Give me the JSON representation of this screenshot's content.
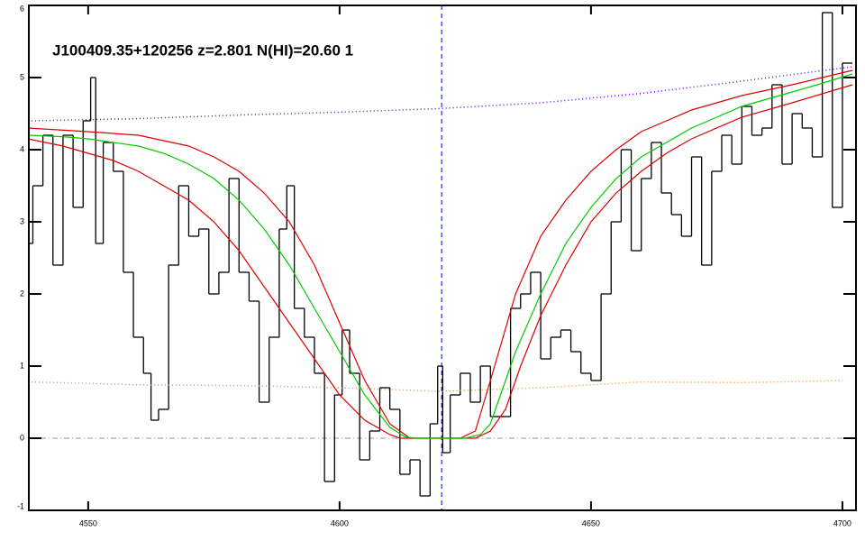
{
  "chart_data": {
    "type": "line",
    "title": "J100409.35+120256 z=2.801 N(HI)=20.60 1",
    "xlim": [
      4538.2,
      4702.7
    ],
    "ylim": [
      -1,
      6
    ],
    "xticks": [
      4550,
      4600,
      4650,
      4700
    ],
    "yticks": [
      -1,
      0,
      1,
      2,
      3,
      4,
      5,
      6
    ],
    "vline": 4620.3,
    "vline_color": "#0000cc",
    "hline": 0,
    "hline_color": "#999999",
    "series": [
      {
        "color": "#000000",
        "drawstyle": "steps-mid",
        "x": [
          4538,
          4540,
          4542,
          4544,
          4546,
          4548,
          4550,
          4551,
          4552,
          4554,
          4556,
          4558,
          4560,
          4562,
          4563,
          4565,
          4567,
          4569,
          4571,
          4573,
          4575,
          4577,
          4579,
          4581,
          4583,
          4585,
          4587,
          4589,
          4590,
          4592,
          4594,
          4596,
          4598,
          4600,
          4601,
          4603,
          4605,
          4607,
          4609,
          4611,
          4613,
          4615,
          4617,
          4619,
          4620,
          4621,
          4623,
          4625,
          4627,
          4629,
          4631,
          4633,
          4635,
          4637,
          4639,
          4641,
          4643,
          4645,
          4647,
          4649,
          4651,
          4653,
          4655,
          4657,
          4659,
          4661,
          4663,
          4665,
          4667,
          4669,
          4671,
          4673,
          4675,
          4677,
          4679,
          4681,
          4683,
          4685,
          4687,
          4689,
          4691,
          4693,
          4695,
          4697,
          4699,
          4701
        ],
        "values": [
          2.7,
          3.5,
          4.2,
          2.4,
          4.2,
          3.2,
          4.4,
          5.0,
          2.7,
          4.1,
          3.7,
          2.3,
          1.4,
          0.9,
          0.25,
          0.4,
          2.4,
          3.5,
          2.8,
          2.9,
          2.0,
          2.3,
          3.6,
          2.3,
          1.9,
          0.5,
          1.4,
          2.9,
          3.5,
          1.8,
          1.4,
          0.9,
          -0.6,
          0.6,
          1.5,
          0.9,
          -0.3,
          0.1,
          0.7,
          0.4,
          -0.5,
          -0.3,
          -0.8,
          0.2,
          1.0,
          -0.2,
          0.6,
          0.9,
          0.5,
          1.0,
          0.3,
          0.3,
          1.8,
          2.0,
          2.3,
          1.1,
          1.4,
          1.5,
          1.2,
          0.9,
          0.8,
          2.0,
          3.0,
          4.0,
          2.6,
          3.6,
          4.1,
          3.4,
          3.1,
          2.8,
          3.9,
          2.4,
          3.7,
          4.2,
          3.8,
          4.6,
          4.2,
          4.3,
          4.9,
          3.8,
          4.5,
          4.3,
          3.9,
          5.9,
          3.2,
          5.2
        ]
      },
      {
        "color": "#ff8c00",
        "drawstyle": "dotted",
        "x": [
          4538,
          4550,
          4560,
          4580,
          4600,
          4620,
          4640,
          4660,
          4680,
          4700
        ],
        "values": [
          0.78,
          0.76,
          0.74,
          0.73,
          0.7,
          0.65,
          0.7,
          0.78,
          0.77,
          0.8
        ]
      },
      {
        "color": "#6600ff",
        "drawstyle": "dotted",
        "x": [
          4538,
          4560,
          4580,
          4600,
          4620,
          4640,
          4660,
          4680,
          4702
        ],
        "values": [
          4.4,
          4.43,
          4.48,
          4.52,
          4.57,
          4.65,
          4.78,
          4.95,
          5.15
        ]
      },
      {
        "color": "#dd0000",
        "drawstyle": "solid",
        "x": [
          4538,
          4550,
          4560,
          4570,
          4575,
          4580,
          4585,
          4590,
          4595,
          4600,
          4605,
          4610,
          4614,
          4624,
          4627,
          4630,
          4635,
          4640,
          4645,
          4650,
          4655,
          4660,
          4665,
          4670,
          4680,
          4690,
          4702
        ],
        "values": [
          4.3,
          4.25,
          4.2,
          4.05,
          3.9,
          3.7,
          3.4,
          3.0,
          2.4,
          1.6,
          0.8,
          0.2,
          0,
          0,
          0.1,
          0.8,
          2.0,
          2.8,
          3.3,
          3.7,
          4.0,
          4.25,
          4.4,
          4.55,
          4.75,
          4.9,
          5.1
        ]
      },
      {
        "color": "#dd0000",
        "drawstyle": "solid",
        "x": [
          4538,
          4545,
          4550,
          4555,
          4560,
          4565,
          4570,
          4575,
          4580,
          4585,
          4590,
          4595,
          4600,
          4605,
          4610,
          4612,
          4627,
          4630,
          4633,
          4636,
          4640,
          4645,
          4650,
          4655,
          4660,
          4665,
          4670,
          4680,
          4690,
          4702
        ],
        "values": [
          4.15,
          4.05,
          3.95,
          3.85,
          3.7,
          3.5,
          3.3,
          3.0,
          2.6,
          2.1,
          1.6,
          1.1,
          0.6,
          0.25,
          0.05,
          0,
          0,
          0.1,
          0.4,
          1.0,
          1.7,
          2.4,
          3.0,
          3.4,
          3.7,
          3.95,
          4.15,
          4.45,
          4.65,
          4.9
        ]
      },
      {
        "color": "#00cc00",
        "drawstyle": "solid",
        "x": [
          4538,
          4545,
          4550,
          4555,
          4560,
          4565,
          4570,
          4575,
          4580,
          4585,
          4590,
          4595,
          4600,
          4605,
          4610,
          4613,
          4615,
          4620,
          4625,
          4628,
          4630,
          4635,
          4640,
          4645,
          4650,
          4655,
          4660,
          4665,
          4670,
          4675,
          4680,
          4685,
          4690,
          4695,
          4702
        ],
        "values": [
          4.2,
          4.18,
          4.15,
          4.1,
          4.05,
          3.95,
          3.8,
          3.6,
          3.3,
          2.9,
          2.4,
          1.8,
          1.2,
          0.6,
          0.15,
          0.02,
          0,
          0,
          0,
          0.05,
          0.2,
          1.2,
          2.0,
          2.7,
          3.2,
          3.6,
          3.9,
          4.1,
          4.3,
          4.45,
          4.6,
          4.7,
          4.8,
          4.9,
          5.05
        ]
      }
    ]
  }
}
